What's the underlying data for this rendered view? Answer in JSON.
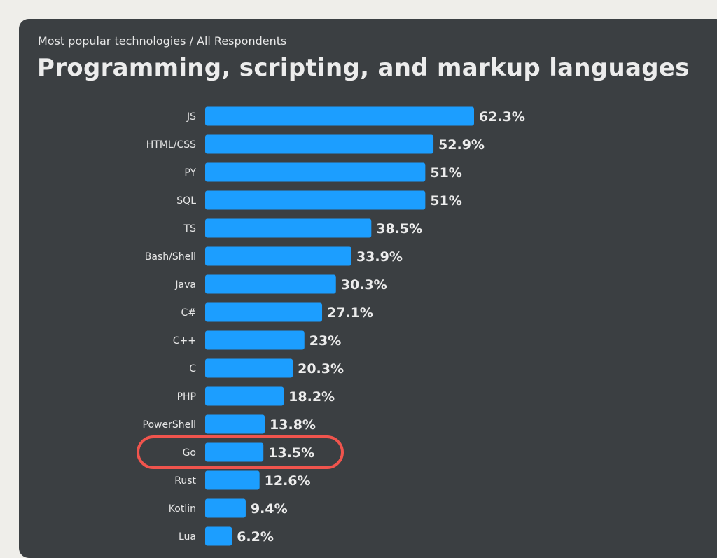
{
  "header": {
    "subtitle": "Most popular technologies / All Respondents",
    "title": "Programming, scripting, and markup languages"
  },
  "colors": {
    "bar": "#1c9eff",
    "highlight": "#f0544d",
    "panel": "#3b3f42",
    "page": "#efeeea"
  },
  "chart_data": {
    "type": "bar",
    "orientation": "horizontal",
    "title": "Programming, scripting, and markup languages",
    "subtitle": "Most popular technologies / All Respondents",
    "categories": [
      "JS",
      "HTML/CSS",
      "PY",
      "SQL",
      "TS",
      "Bash/Shell",
      "Java",
      "C#",
      "C++",
      "C",
      "PHP",
      "PowerShell",
      "Go",
      "Rust",
      "Kotlin",
      "Lua"
    ],
    "values": [
      62.3,
      52.9,
      51,
      51,
      38.5,
      33.9,
      30.3,
      27.1,
      23,
      20.3,
      18.2,
      13.8,
      13.5,
      12.6,
      9.4,
      6.2
    ],
    "value_labels": [
      "62.3%",
      "52.9%",
      "51%",
      "51%",
      "38.5%",
      "33.9%",
      "30.3%",
      "27.1%",
      "23%",
      "20.3%",
      "18.2%",
      "13.8%",
      "13.5%",
      "12.6%",
      "9.4%",
      "6.2%"
    ],
    "unit": "%",
    "highlighted_category": "Go",
    "grid": false
  }
}
